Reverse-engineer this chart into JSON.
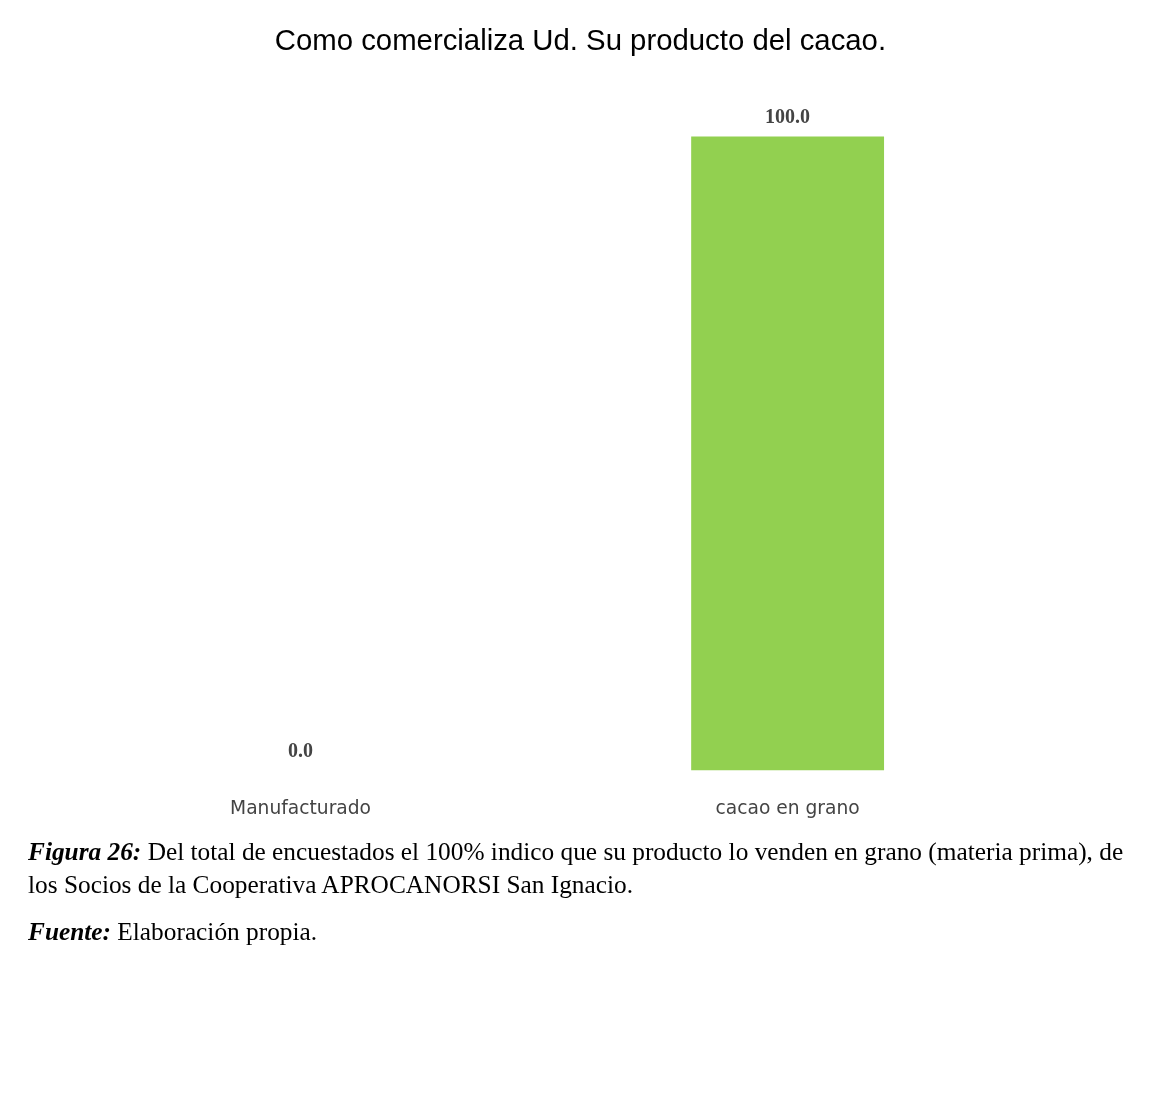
{
  "chart_data": {
    "type": "bar",
    "title": "Como comercializa Ud.  Su producto del cacao.",
    "categories": [
      "Manufacturado",
      "cacao en grano"
    ],
    "values": [
      0.0,
      100.0
    ],
    "color": "#92d050",
    "value_labels": [
      "0.0",
      "100.0"
    ],
    "tick_labels": "x",
    "grid": false,
    "annotations": [
      "Figura 26: Del total de encuestados el 100% indico que su producto lo venden en grano (materia prima), de los Socios de la Cooperativa APROCANORSI San Ignacio.",
      "Fuente: Elaboración propia."
    ]
  }
}
